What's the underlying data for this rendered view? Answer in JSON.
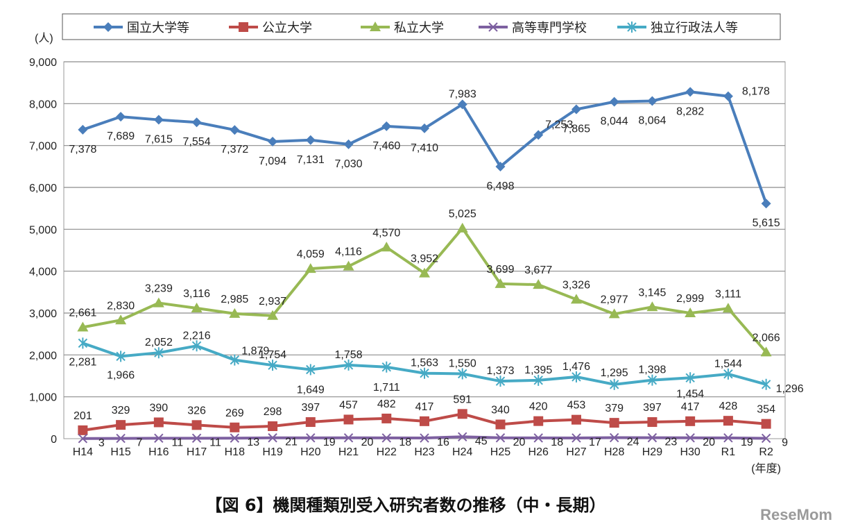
{
  "chart_data": {
    "type": "line",
    "title": "【図 6】機関種類別受入研究者数の推移（中・長期）",
    "ylabel": "(人)",
    "xlabel": "(年度)",
    "ylim": [
      0,
      9000
    ],
    "yticks": [
      "0",
      "1,000",
      "2,000",
      "3,000",
      "4,000",
      "5,000",
      "6,000",
      "7,000",
      "8,000",
      "9,000"
    ],
    "grid": true,
    "legend_position": "top",
    "categories": [
      "H14",
      "H15",
      "H16",
      "H17",
      "H18",
      "H19",
      "H20",
      "H21",
      "H22",
      "H23",
      "H24",
      "H25",
      "H26",
      "H27",
      "H28",
      "H29",
      "H30",
      "R1",
      "R2"
    ],
    "series": [
      {
        "name": "国立大学等",
        "color": "#4a7ebb",
        "marker": "diamond",
        "values": [
          7378,
          7689,
          7615,
          7554,
          7372,
          7094,
          7131,
          7030,
          7460,
          7410,
          7983,
          6498,
          7253,
          7865,
          8044,
          8064,
          8282,
          8178,
          5615
        ]
      },
      {
        "name": "公立大学",
        "color": "#be4b48",
        "marker": "square",
        "values": [
          201,
          329,
          390,
          326,
          269,
          298,
          397,
          457,
          482,
          417,
          591,
          340,
          420,
          453,
          379,
          397,
          417,
          428,
          354
        ]
      },
      {
        "name": "私立大学",
        "color": "#98b954",
        "marker": "triangle",
        "values": [
          2661,
          2830,
          3239,
          3116,
          2985,
          2937,
          4059,
          4116,
          4570,
          3952,
          5025,
          3699,
          3677,
          3326,
          2977,
          3145,
          2999,
          3111,
          2066
        ]
      },
      {
        "name": "高等専門学校",
        "color": "#7d60a0",
        "marker": "x",
        "values": [
          3,
          7,
          11,
          11,
          13,
          21,
          19,
          20,
          18,
          16,
          45,
          20,
          18,
          17,
          24,
          23,
          20,
          19,
          9
        ]
      },
      {
        "name": "独立行政法人等",
        "color": "#46aac5",
        "marker": "star",
        "values": [
          2281,
          1966,
          2052,
          2216,
          1879,
          1754,
          1649,
          1758,
          1711,
          1563,
          1550,
          1373,
          1395,
          1476,
          1295,
          1398,
          1454,
          1544,
          1296
        ]
      }
    ]
  },
  "watermark": "ReseMom"
}
